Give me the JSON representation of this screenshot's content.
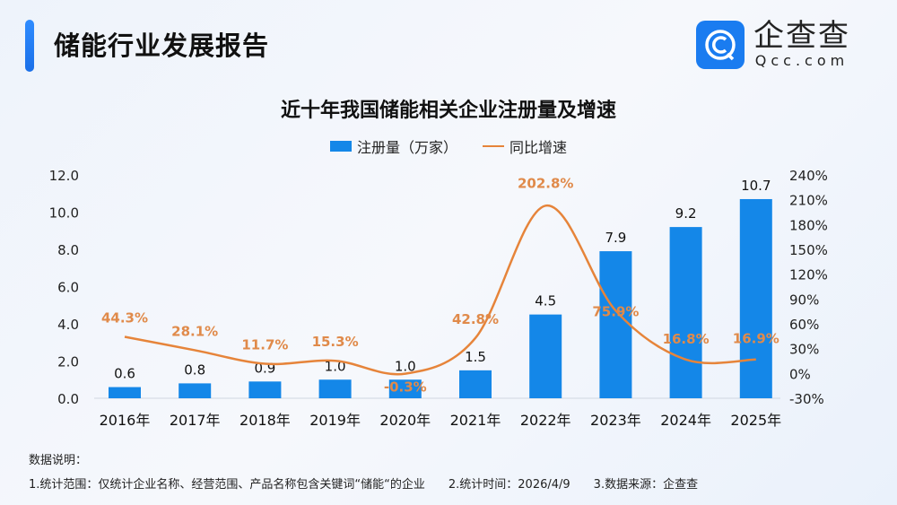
{
  "header": {
    "title": "储能行业发展报告",
    "logo_cn": "企查查",
    "logo_en": "Qcc.com"
  },
  "chart_data": {
    "type": "bar+line",
    "title": "近十年我国储能相关企业注册量及增速",
    "legend_position": "top",
    "categories": [
      "2016年",
      "2017年",
      "2018年",
      "2019年",
      "2020年",
      "2021年",
      "2022年",
      "2023年",
      "2024年",
      "2025年"
    ],
    "series": [
      {
        "name": "注册量（万家）",
        "type": "bar",
        "axis": "left",
        "color": "#1487e8",
        "values": [
          0.6,
          0.8,
          0.9,
          1.0,
          1.0,
          1.5,
          4.5,
          7.9,
          9.2,
          10.7
        ],
        "labels": [
          "0.6",
          "0.8",
          "0.9",
          "1.0",
          "1.0",
          "1.5",
          "4.5",
          "7.9",
          "9.2",
          "10.7"
        ]
      },
      {
        "name": "同比增速",
        "type": "line",
        "axis": "right",
        "color": "#e6843a",
        "smooth": true,
        "values": [
          44.3,
          28.1,
          11.7,
          15.3,
          -0.3,
          42.8,
          202.8,
          75.9,
          16.8,
          16.9
        ],
        "labels": [
          "44.3%",
          "28.1%",
          "11.7%",
          "15.3%",
          "-0.3%",
          "42.8%",
          "202.8%",
          "75.9%",
          "16.8%",
          "16.9%"
        ]
      }
    ],
    "y_left": {
      "range": [
        0,
        12
      ],
      "ticks": [
        "0.0",
        "2.0",
        "4.0",
        "6.0",
        "8.0",
        "10.0",
        "12.0"
      ]
    },
    "y_right": {
      "range": [
        -30,
        240
      ],
      "ticks": [
        "-30%",
        "0%",
        "30%",
        "60%",
        "90%",
        "120%",
        "150%",
        "180%",
        "210%",
        "240%"
      ]
    },
    "grid": false
  },
  "notes": {
    "heading": "数据说明：",
    "items": [
      "1.统计范围：仅统计企业名称、经营范围、产品名称包含关键词“储能“的企业",
      "2.统计时间：2026/4/9",
      "3.数据来源：企查查"
    ]
  }
}
